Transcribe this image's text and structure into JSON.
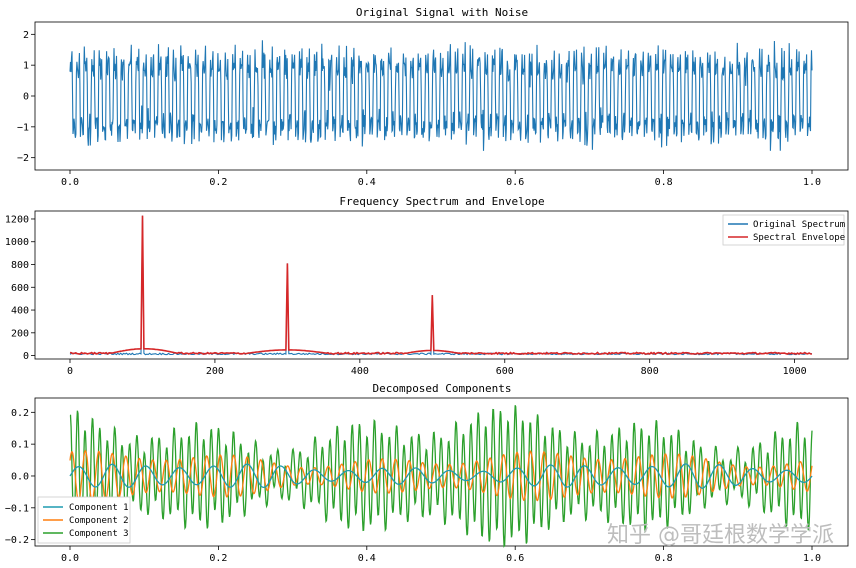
{
  "chart_data": [
    {
      "type": "line",
      "title": "Original Signal with Noise",
      "xlabel": "",
      "ylabel": "",
      "xlim": [
        0.0,
        1.0
      ],
      "ylim": [
        -2.4,
        2.4
      ],
      "xticks": [
        0.0,
        0.2,
        0.4,
        0.6,
        0.8,
        1.0
      ],
      "xtick_labels": [
        "0.0",
        "0.2",
        "0.4",
        "0.6",
        "0.8",
        "1.0"
      ],
      "yticks": [
        2,
        1,
        0,
        -1,
        -2
      ],
      "ytick_labels": [
        "2",
        "1",
        "0",
        "−1",
        "−2"
      ],
      "grid": false,
      "series": [
        {
          "color": "#1f77b4",
          "description": "dense oscillating signal, approx. 1.2*sin(2π·100t) + 0.6*sin(2π·300t) + 0.3*sin(2π·500t) + noise",
          "x_range": [
            0.0,
            1.0
          ],
          "y_range": [
            -2.3,
            2.3
          ],
          "components": [
            {
              "frequency": 100,
              "amplitude": 1.25
            },
            {
              "frequency": 300,
              "amplitude": 0.6
            },
            {
              "frequency": 500,
              "amplitude": 0.3
            }
          ],
          "noise_sigma": 0.2
        }
      ]
    },
    {
      "type": "line",
      "title": "Frequency Spectrum and Envelope",
      "xlabel": "",
      "ylabel": "",
      "xlim": [
        0,
        1024
      ],
      "ylim": [
        -30,
        1270
      ],
      "xticks": [
        0,
        200,
        400,
        600,
        800,
        1000
      ],
      "xtick_labels": [
        "0",
        "200",
        "400",
        "600",
        "800",
        "1000"
      ],
      "yticks": [
        1200,
        1000,
        800,
        600,
        400,
        200,
        0
      ],
      "ytick_labels": [
        "1200",
        "1000",
        "800",
        "600",
        "400",
        "200",
        "0"
      ],
      "grid": false,
      "legend": {
        "placement": "top-right"
      },
      "series": [
        {
          "name": "Original Spectrum",
          "color": "#1f77b4",
          "peaks": [
            [
              100,
              1230
            ],
            [
              300,
              810
            ],
            [
              500,
              530
            ]
          ],
          "baseline": 15
        },
        {
          "name": "Spectral Envelope",
          "color": "#d62728",
          "peaks": [
            [
              100,
              1230
            ],
            [
              300,
              810
            ],
            [
              500,
              530
            ]
          ],
          "baseline": 20,
          "bumps": [
            [
              50,
              155,
              50
            ],
            [
              235,
              365,
              40
            ],
            [
              455,
              545,
              35
            ]
          ]
        }
      ]
    },
    {
      "type": "line",
      "title": "Decomposed Components",
      "xlabel": "",
      "ylabel": "",
      "xlim": [
        0.0,
        1.0
      ],
      "ylim": [
        -0.22,
        0.245
      ],
      "xticks": [
        0.0,
        0.2,
        0.4,
        0.6,
        0.8,
        1.0
      ],
      "xtick_labels": [
        "0.0",
        "0.2",
        "0.4",
        "0.6",
        "0.8",
        "1.0"
      ],
      "yticks": [
        0.2,
        0.1,
        0.0,
        -0.1,
        -0.2
      ],
      "ytick_labels": [
        "0.2",
        "0.1",
        "0.0",
        "−0.1",
        "−0.2"
      ],
      "grid": false,
      "legend": {
        "placement": "bottom-left"
      },
      "series": [
        {
          "name": "Component 1",
          "color": "#1f9bb0",
          "amplitude": 0.04,
          "cycles": 22
        },
        {
          "name": "Component 2",
          "color": "#ff7f0e",
          "amplitude": 0.08,
          "cycles": 55
        },
        {
          "name": "Component 3",
          "color": "#2ca02c",
          "amplitude": 0.2,
          "cycles": 100
        }
      ]
    }
  ],
  "watermark": "知乎 @哥廷根数学学派"
}
